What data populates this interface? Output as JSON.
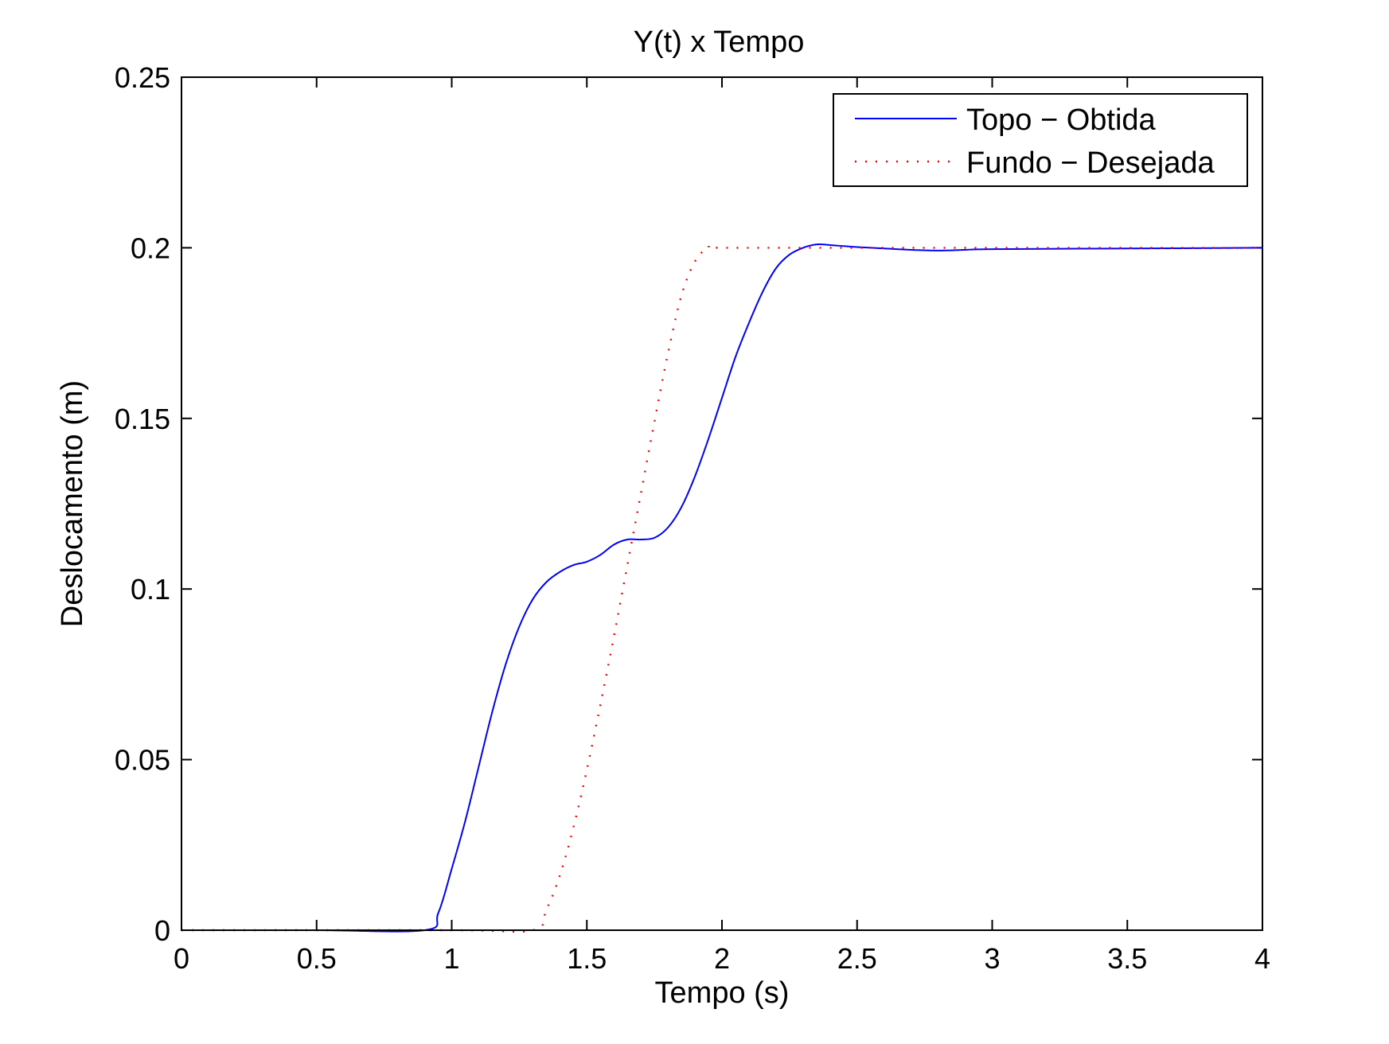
{
  "chart_data": {
    "type": "line",
    "title": "Y(t) x Tempo",
    "xlabel": "Tempo (s)",
    "ylabel": "Deslocamento (m)",
    "xlim": [
      0,
      4
    ],
    "ylim": [
      0,
      0.25
    ],
    "xticks": [
      0,
      0.5,
      1,
      1.5,
      2,
      2.5,
      3,
      3.5,
      4
    ],
    "xtick_labels": [
      "0",
      "0.5",
      "1",
      "1.5",
      "2",
      "2.5",
      "3",
      "3.5",
      "4"
    ],
    "yticks": [
      0,
      0.05,
      0.1,
      0.15,
      0.2,
      0.25
    ],
    "ytick_labels": [
      "0",
      "0.05",
      "0.1",
      "0.15",
      "0.2",
      "0.25"
    ],
    "grid": false,
    "legend_position": "top-right",
    "series": [
      {
        "name": "Topo − Obtida",
        "color": "#0000ff",
        "style": "solid",
        "x": [
          0,
          0.5,
          0.9,
          0.95,
          1.0,
          1.05,
          1.1,
          1.15,
          1.2,
          1.25,
          1.3,
          1.35,
          1.4,
          1.45,
          1.5,
          1.55,
          1.6,
          1.65,
          1.7,
          1.75,
          1.8,
          1.85,
          1.9,
          1.95,
          2.0,
          2.05,
          2.1,
          2.15,
          2.2,
          2.25,
          2.3,
          2.35,
          2.4,
          2.45,
          2.5,
          2.6,
          2.7,
          2.8,
          2.9,
          3.0,
          3.5,
          4.0
        ],
        "y": [
          0,
          0,
          0,
          0.005,
          0.018,
          0.032,
          0.048,
          0.064,
          0.078,
          0.089,
          0.097,
          0.102,
          0.105,
          0.107,
          0.108,
          0.11,
          0.113,
          0.1145,
          0.1145,
          0.115,
          0.118,
          0.124,
          0.133,
          0.144,
          0.156,
          0.168,
          0.178,
          0.187,
          0.194,
          0.198,
          0.2,
          0.201,
          0.2008,
          0.2005,
          0.2002,
          0.1998,
          0.1994,
          0.1992,
          0.1994,
          0.1996,
          0.1998,
          0.2
        ]
      },
      {
        "name": "Fundo − Desejada",
        "color": "#ff0000",
        "style": "dotted",
        "x": [
          0,
          1.0,
          1.3,
          1.35,
          1.4,
          1.45,
          1.5,
          1.55,
          1.6,
          1.65,
          1.7,
          1.75,
          1.8,
          1.85,
          1.9,
          1.95,
          2.0,
          2.5,
          3.0,
          3.5,
          4.0
        ],
        "y": [
          0,
          0,
          0,
          0.006,
          0.016,
          0.03,
          0.047,
          0.066,
          0.086,
          0.107,
          0.128,
          0.149,
          0.169,
          0.186,
          0.196,
          0.2,
          0.2,
          0.2,
          0.2,
          0.2,
          0.2
        ]
      }
    ]
  }
}
